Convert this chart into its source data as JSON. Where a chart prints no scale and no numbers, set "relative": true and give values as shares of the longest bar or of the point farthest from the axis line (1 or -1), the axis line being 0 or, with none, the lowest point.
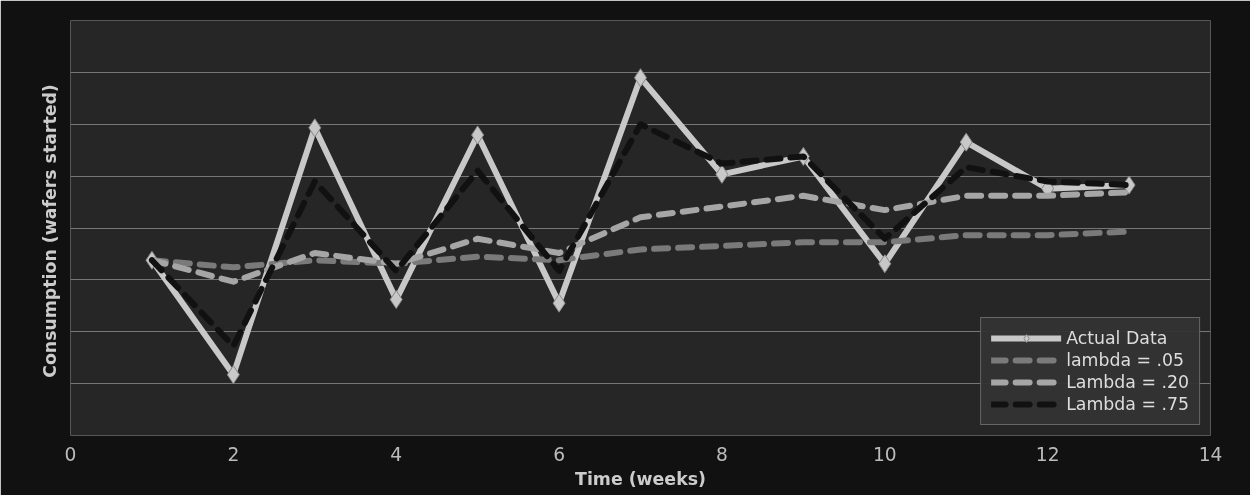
{
  "chart_data": {
    "type": "line",
    "xlabel": "Time (weeks)",
    "ylabel": "Consumption  (wafers started)",
    "relative": true,
    "x": [
      1,
      2,
      3,
      4,
      5,
      6,
      7,
      8,
      9,
      10,
      11,
      12,
      13
    ],
    "xlim": [
      0,
      14
    ],
    "xticks": [
      0,
      2,
      4,
      6,
      8,
      10,
      12,
      14
    ],
    "grid": "y",
    "legend": "bottom right",
    "tick_labels": "x",
    "series": [
      {
        "name": "Actual Data",
        "color": "#c8c8c8",
        "marker": "diamond",
        "line_style": "solid",
        "values": [
          0.49,
          0.17,
          0.86,
          0.38,
          0.84,
          0.37,
          1,
          0.73,
          0.78,
          0.48,
          0.82,
          0.69,
          0.7
        ]
      },
      {
        "name": "lambda = .05",
        "color": "#7a7a7a",
        "marker": "none",
        "line_style": "dashed",
        "values": [
          0.49,
          0.47,
          0.49,
          0.48,
          0.5,
          0.49,
          0.52,
          0.53,
          0.54,
          0.54,
          0.56,
          0.56,
          0.57
        ]
      },
      {
        "name": "Lambda = .20",
        "color": "#a6a6a6",
        "marker": "none",
        "line_style": "dashed",
        "values": [
          0.49,
          0.43,
          0.51,
          0.48,
          0.55,
          0.51,
          0.61,
          0.64,
          0.67,
          0.63,
          0.67,
          0.67,
          0.68
        ]
      },
      {
        "name": "Lambda = .75",
        "color": "#111111",
        "marker": "none",
        "line_style": "dashed",
        "values": [
          0.49,
          0.25,
          0.71,
          0.46,
          0.74,
          0.46,
          0.87,
          0.76,
          0.78,
          0.55,
          0.75,
          0.71,
          0.7
        ]
      }
    ]
  }
}
